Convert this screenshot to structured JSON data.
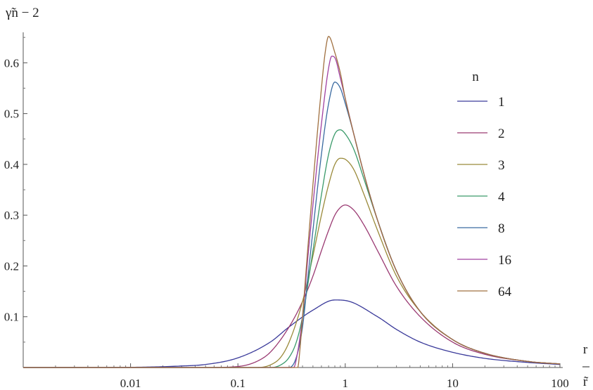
{
  "chart_data": {
    "type": "line",
    "xscale": "log",
    "xlim": [
      0.001,
      100
    ],
    "ylim": [
      0,
      0.66
    ],
    "ylabel": "γ̃n − 2",
    "xlabel_num": "r",
    "xlabel_den": "r̃",
    "x_ticks": [
      {
        "value": 0.01,
        "label": "0.01"
      },
      {
        "value": 0.1,
        "label": "0.1"
      },
      {
        "value": 1,
        "label": "1"
      },
      {
        "value": 10,
        "label": "10"
      },
      {
        "value": 100,
        "label": "100"
      }
    ],
    "y_ticks": [
      {
        "value": 0.1,
        "label": "0.1"
      },
      {
        "value": 0.2,
        "label": "0.2"
      },
      {
        "value": 0.3,
        "label": "0.3"
      },
      {
        "value": 0.4,
        "label": "0.4"
      },
      {
        "value": 0.5,
        "label": "0.5"
      },
      {
        "value": 0.6,
        "label": "0.6"
      }
    ],
    "legend_title": "n",
    "legend_position": "right",
    "series": [
      {
        "name": "1",
        "color": "#3a3a9a",
        "x": [
          0.001,
          0.01,
          0.03,
          0.05,
          0.1,
          0.2,
          0.3,
          0.5,
          0.8,
          1,
          2,
          3,
          5,
          10,
          20,
          50,
          100
        ],
        "y": [
          0,
          0.0005,
          0.003,
          0.006,
          0.019,
          0.05,
          0.08,
          0.113,
          0.133,
          0.132,
          0.1,
          0.075,
          0.05,
          0.03,
          0.018,
          0.01,
          0.006
        ]
      },
      {
        "name": "2",
        "color": "#9a3a72",
        "x": [
          0.001,
          0.05,
          0.1,
          0.15,
          0.2,
          0.3,
          0.4,
          0.5,
          0.6,
          0.7,
          0.8,
          0.9,
          1,
          1.2,
          1.5,
          2,
          3,
          5,
          10,
          20,
          50,
          100
        ],
        "y": [
          0,
          0,
          0.002,
          0.012,
          0.03,
          0.08,
          0.13,
          0.18,
          0.23,
          0.27,
          0.3,
          0.315,
          0.32,
          0.31,
          0.28,
          0.23,
          0.16,
          0.1,
          0.05,
          0.026,
          0.012,
          0.007
        ]
      },
      {
        "name": "3",
        "color": "#9a8a3a",
        "x": [
          0.001,
          0.15,
          0.2,
          0.25,
          0.3,
          0.4,
          0.5,
          0.6,
          0.7,
          0.8,
          0.9,
          1,
          1.2,
          1.5,
          2,
          3,
          5,
          10,
          20,
          50,
          100
        ],
        "y": [
          0,
          0,
          0.005,
          0.02,
          0.05,
          0.13,
          0.22,
          0.3,
          0.36,
          0.4,
          0.412,
          0.41,
          0.39,
          0.34,
          0.27,
          0.18,
          0.11,
          0.055,
          0.028,
          0.012,
          0.007
        ]
      },
      {
        "name": "4",
        "color": "#3a9a6a",
        "x": [
          0.001,
          0.2,
          0.25,
          0.3,
          0.35,
          0.4,
          0.5,
          0.6,
          0.7,
          0.8,
          0.9,
          1,
          1.2,
          1.5,
          2,
          3,
          5,
          10,
          20,
          50,
          100
        ],
        "y": [
          0,
          0,
          0.005,
          0.02,
          0.05,
          0.1,
          0.23,
          0.34,
          0.42,
          0.46,
          0.468,
          0.46,
          0.43,
          0.37,
          0.29,
          0.19,
          0.11,
          0.055,
          0.028,
          0.012,
          0.007
        ]
      },
      {
        "name": "8",
        "color": "#3a6aa0",
        "x": [
          0.001,
          0.3,
          0.35,
          0.4,
          0.45,
          0.5,
          0.6,
          0.7,
          0.8,
          0.9,
          1,
          1.2,
          1.5,
          2,
          3,
          5,
          10,
          20,
          50,
          100
        ],
        "y": [
          0,
          0,
          0.02,
          0.08,
          0.18,
          0.27,
          0.42,
          0.52,
          0.562,
          0.55,
          0.52,
          0.46,
          0.38,
          0.29,
          0.19,
          0.11,
          0.055,
          0.028,
          0.012,
          0.007
        ]
      },
      {
        "name": "16",
        "color": "#a040a0",
        "x": [
          0.001,
          0.33,
          0.36,
          0.4,
          0.45,
          0.5,
          0.6,
          0.7,
          0.75,
          0.8,
          0.9,
          1,
          1.2,
          1.5,
          2,
          3,
          5,
          10,
          20,
          50,
          100
        ],
        "y": [
          0,
          0,
          0.03,
          0.1,
          0.22,
          0.32,
          0.48,
          0.59,
          0.613,
          0.61,
          0.57,
          0.53,
          0.46,
          0.38,
          0.29,
          0.19,
          0.11,
          0.055,
          0.028,
          0.012,
          0.007
        ]
      },
      {
        "name": "64",
        "color": "#a07040",
        "x": [
          0.001,
          0.36,
          0.38,
          0.4,
          0.45,
          0.5,
          0.6,
          0.65,
          0.7,
          0.8,
          0.9,
          1,
          1.2,
          1.5,
          2,
          3,
          5,
          10,
          20,
          50,
          100
        ],
        "y": [
          0,
          0,
          0.04,
          0.1,
          0.24,
          0.36,
          0.55,
          0.62,
          0.652,
          0.62,
          0.58,
          0.53,
          0.46,
          0.38,
          0.29,
          0.19,
          0.11,
          0.055,
          0.028,
          0.012,
          0.007
        ]
      }
    ]
  }
}
